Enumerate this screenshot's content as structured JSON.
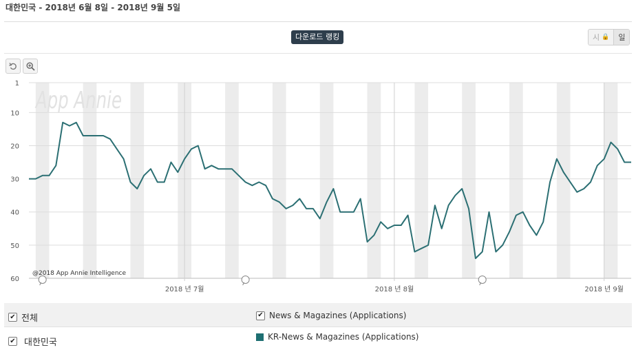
{
  "page_title": "대한민국 - 2018년 6월 8일 - 2018년 9월 5일",
  "metric_badge": "다운로드 랭킹",
  "granularity": {
    "weekly_label": "시",
    "daily_label": "일",
    "selected": "일"
  },
  "toolbar": {
    "reset_icon": "undo-icon",
    "zoom_icon": "zoom-in-icon"
  },
  "watermark": "App Annie",
  "credit": "@2018 App Annie Intelligence",
  "colors": {
    "line": "#2b6f73",
    "weekend_band": "#ececec",
    "grid": "#dddddd"
  },
  "chart_data": {
    "type": "line",
    "title": "",
    "xlabel": "",
    "ylabel": "",
    "y_inverted": true,
    "ylim": [
      1,
      60
    ],
    "yticks": [
      1,
      10,
      20,
      30,
      40,
      50,
      60
    ],
    "x_start": "2018-06-08",
    "x_end": "2018-09-05",
    "xticks": [
      {
        "date": "2018-07-01",
        "label": "2018 년 7월"
      },
      {
        "date": "2018-08-01",
        "label": "2018 년 8월"
      },
      {
        "date": "2018-09-01",
        "label": "2018 년 9월"
      }
    ],
    "event_markers": [
      "2018-06-10",
      "2018-07-10",
      "2018-08-14"
    ],
    "weekends": [
      "2018-06-09",
      "2018-06-16",
      "2018-06-23",
      "2018-06-30",
      "2018-07-07",
      "2018-07-14",
      "2018-07-21",
      "2018-07-28",
      "2018-08-04",
      "2018-08-11",
      "2018-08-18",
      "2018-08-25",
      "2018-09-01"
    ],
    "grid": true,
    "series": [
      {
        "name": "KR-News & Magazines (Applications)",
        "x": [
          "2018-06-08",
          "2018-06-09",
          "2018-06-10",
          "2018-06-11",
          "2018-06-12",
          "2018-06-13",
          "2018-06-14",
          "2018-06-15",
          "2018-06-16",
          "2018-06-17",
          "2018-06-18",
          "2018-06-19",
          "2018-06-20",
          "2018-06-21",
          "2018-06-22",
          "2018-06-23",
          "2018-06-24",
          "2018-06-25",
          "2018-06-26",
          "2018-06-27",
          "2018-06-28",
          "2018-06-29",
          "2018-06-30",
          "2018-07-01",
          "2018-07-02",
          "2018-07-03",
          "2018-07-04",
          "2018-07-05",
          "2018-07-06",
          "2018-07-07",
          "2018-07-08",
          "2018-07-09",
          "2018-07-10",
          "2018-07-11",
          "2018-07-12",
          "2018-07-13",
          "2018-07-14",
          "2018-07-15",
          "2018-07-16",
          "2018-07-17",
          "2018-07-18",
          "2018-07-19",
          "2018-07-20",
          "2018-07-21",
          "2018-07-22",
          "2018-07-23",
          "2018-07-24",
          "2018-07-25",
          "2018-07-26",
          "2018-07-27",
          "2018-07-28",
          "2018-07-29",
          "2018-07-30",
          "2018-07-31",
          "2018-08-01",
          "2018-08-02",
          "2018-08-03",
          "2018-08-04",
          "2018-08-05",
          "2018-08-06",
          "2018-08-07",
          "2018-08-08",
          "2018-08-09",
          "2018-08-10",
          "2018-08-11",
          "2018-08-12",
          "2018-08-13",
          "2018-08-14",
          "2018-08-15",
          "2018-08-16",
          "2018-08-17",
          "2018-08-18",
          "2018-08-19",
          "2018-08-20",
          "2018-08-21",
          "2018-08-22",
          "2018-08-23",
          "2018-08-24",
          "2018-08-25",
          "2018-08-26",
          "2018-08-27",
          "2018-08-28",
          "2018-08-29",
          "2018-08-30",
          "2018-08-31",
          "2018-09-01",
          "2018-09-02",
          "2018-09-03",
          "2018-09-04",
          "2018-09-05"
        ],
        "values": [
          30,
          30,
          29,
          29,
          26,
          13,
          14,
          13,
          17,
          17,
          17,
          17,
          18,
          21,
          24,
          31,
          33,
          29,
          27,
          31,
          31,
          25,
          28,
          24,
          21,
          20,
          27,
          26,
          27,
          27,
          27,
          29,
          31,
          32,
          31,
          32,
          36,
          37,
          39,
          38,
          36,
          39,
          39,
          42,
          37,
          33,
          40,
          40,
          40,
          36,
          49,
          47,
          43,
          45,
          44,
          44,
          41,
          52,
          51,
          50,
          38,
          45,
          38,
          35,
          33,
          39,
          54,
          52,
          40,
          52,
          50,
          46,
          41,
          40,
          44,
          47,
          43,
          31,
          24,
          28,
          31,
          34,
          33,
          31,
          26,
          24,
          19,
          21,
          25,
          25
        ]
      }
    ]
  },
  "legend": {
    "all_label": "전체",
    "category_label": "News & Magazines (Applications)",
    "country_label": "대한민국",
    "series_label": "KR-News & Magazines (Applications)"
  }
}
